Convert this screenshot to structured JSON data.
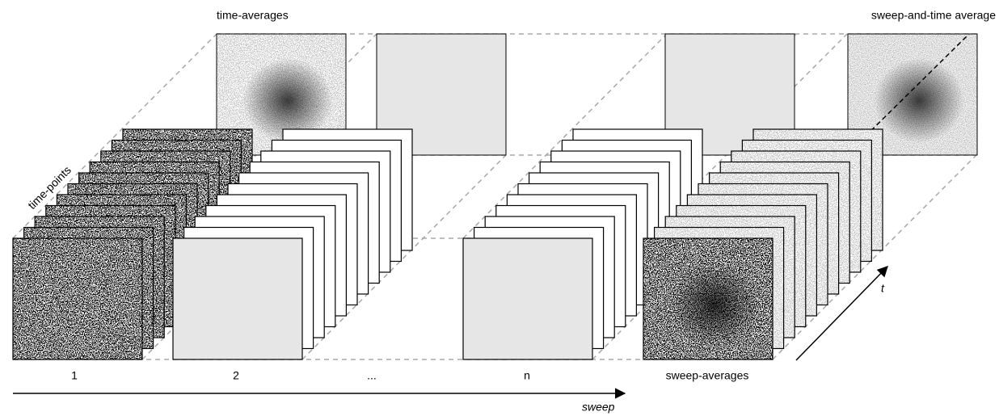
{
  "labels": {
    "time_averages": "time-averages",
    "sweep_and_time_average": "sweep-and-time average",
    "time_points": "time-points",
    "sweep_averages": "sweep-averages",
    "sweep_axis": "sweep",
    "time_axis": "t"
  },
  "sweep_labels": [
    "1",
    "2",
    "...",
    "n"
  ]
}
